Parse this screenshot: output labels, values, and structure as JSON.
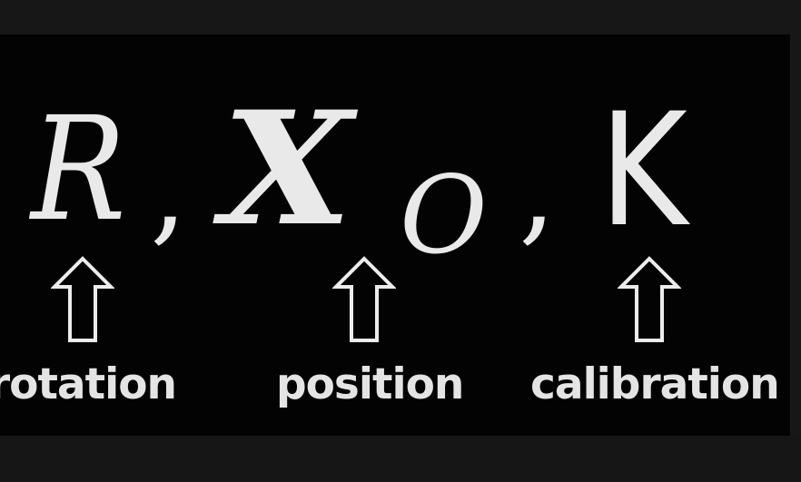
{
  "formula": {
    "symbol_r": "R",
    "comma_1": ",",
    "symbol_x": "X",
    "subscript_o": "O",
    "comma_2": ",",
    "symbol_k": "K"
  },
  "arrows": [
    {
      "icon": "up-arrow-outline-icon"
    },
    {
      "icon": "up-arrow-outline-icon"
    },
    {
      "icon": "up-arrow-outline-icon"
    }
  ],
  "labels": {
    "rotation": "rotation",
    "position": "position",
    "calibration": "calibration"
  },
  "colors": {
    "background": "#030303",
    "frame": "#171717",
    "text": "#e9e9e9"
  }
}
